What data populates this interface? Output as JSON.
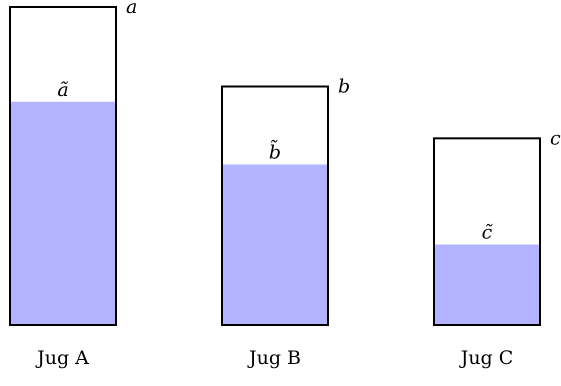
{
  "jugs": [
    {
      "name": "Jug A",
      "capacity_label": "a",
      "level_label": "ã",
      "capacity": 1.0,
      "fill_fraction": 0.702
    },
    {
      "name": "Jug B",
      "capacity_label": "b",
      "level_label": "b̃",
      "capacity": 0.75,
      "fill_fraction": 0.673
    },
    {
      "name": "Jug C",
      "capacity_label": "c",
      "level_label": "c̃",
      "capacity": 0.587,
      "fill_fraction": 0.431
    }
  ],
  "colors": {
    "water": "#b3b3ff",
    "outline": "#000000"
  }
}
